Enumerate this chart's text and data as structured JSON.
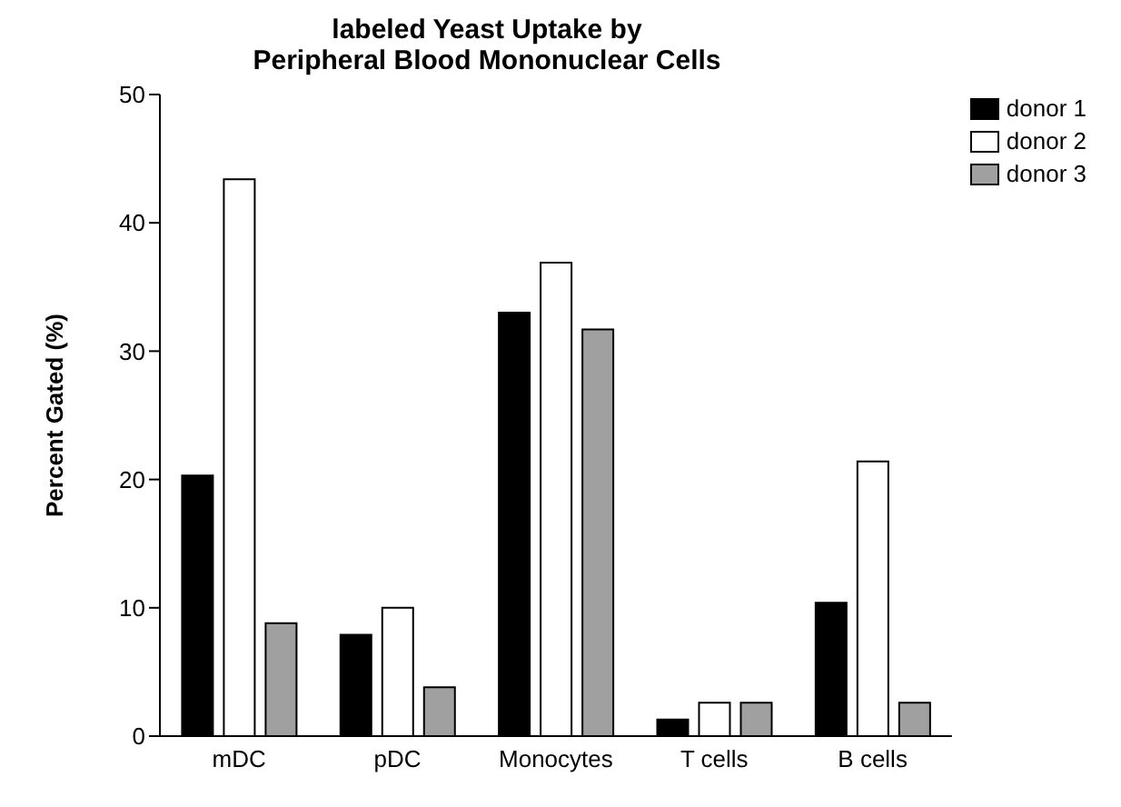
{
  "chart_data": {
    "type": "bar",
    "title": "labeled Yeast Uptake by\nPeripheral Blood Mononuclear Cells",
    "ylabel": "Percent Gated (%)",
    "categories": [
      "mDC",
      "pDC",
      "Monocytes",
      "T cells",
      "B cells"
    ],
    "series": [
      {
        "name": "donor 1",
        "color": "#000000",
        "values": [
          20.3,
          7.9,
          33,
          1.3,
          10.4
        ]
      },
      {
        "name": "donor 2",
        "color": "#ffffff",
        "values": [
          43.4,
          10,
          36.9,
          2.6,
          21.4
        ]
      },
      {
        "name": "donor 3",
        "color": "#a0a0a0",
        "values": [
          8.8,
          3.8,
          31.7,
          2.6,
          2.6
        ]
      }
    ],
    "ylim": [
      0,
      50
    ],
    "yticks": [
      0,
      10,
      20,
      30,
      40,
      50
    ],
    "grid": false,
    "legend": "top right"
  }
}
